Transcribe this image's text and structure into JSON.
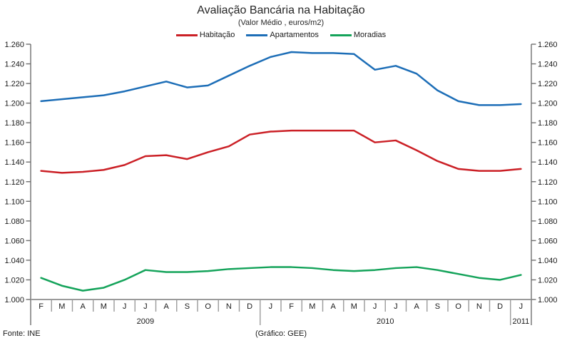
{
  "title": "Avaliação Bancária na Habitação",
  "subtitle": "(Valor Médio , euros/m2)",
  "footer": {
    "source": "Fonte: INE",
    "credit": "(Gráfico: GEE)"
  },
  "chart_data": {
    "type": "line",
    "title": "Avaliação Bancária na Habitação",
    "subtitle": "(Valor Médio , euros/m2)",
    "legend_position": "top",
    "grid": false,
    "ylim": [
      1.0,
      1.26
    ],
    "y_tick_step": 0.02,
    "y_tick_labels": [
      "1.000",
      "1.020",
      "1.040",
      "1.060",
      "1.080",
      "1.100",
      "1.120",
      "1.140",
      "1.160",
      "1.180",
      "1.200",
      "1.220",
      "1.240",
      "1.260"
    ],
    "x_months": [
      "F",
      "M",
      "A",
      "M",
      "J",
      "J",
      "A",
      "S",
      "O",
      "N",
      "D",
      "J",
      "F",
      "M",
      "A",
      "M",
      "J",
      "J",
      "A",
      "S",
      "O",
      "N",
      "D",
      "J"
    ],
    "year_groups": [
      {
        "label": "2009",
        "start": 0,
        "end": 10
      },
      {
        "label": "2010",
        "start": 11,
        "end": 22
      },
      {
        "label": "2011",
        "start": 23,
        "end": 23
      }
    ],
    "series": [
      {
        "name": "Habitação",
        "color": "#cb2026",
        "values": [
          1.131,
          1.129,
          1.13,
          1.132,
          1.137,
          1.146,
          1.147,
          1.143,
          1.15,
          1.156,
          1.168,
          1.171,
          1.172,
          1.172,
          1.172,
          1.172,
          1.16,
          1.162,
          1.152,
          1.141,
          1.133,
          1.131,
          1.131,
          1.133
        ]
      },
      {
        "name": "Apartamentos",
        "color": "#1d6eb7",
        "values": [
          1.202,
          1.204,
          1.206,
          1.208,
          1.212,
          1.217,
          1.222,
          1.216,
          1.218,
          1.228,
          1.238,
          1.247,
          1.252,
          1.251,
          1.251,
          1.25,
          1.234,
          1.238,
          1.23,
          1.213,
          1.202,
          1.198,
          1.198,
          1.199
        ]
      },
      {
        "name": "Moradias",
        "color": "#14a35a",
        "values": [
          1.022,
          1.014,
          1.009,
          1.012,
          1.02,
          1.03,
          1.028,
          1.028,
          1.029,
          1.031,
          1.032,
          1.033,
          1.033,
          1.032,
          1.03,
          1.029,
          1.03,
          1.032,
          1.033,
          1.03,
          1.026,
          1.022,
          1.02,
          1.025
        ]
      }
    ],
    "axis_colors": {
      "value_axis": "#6e6e6e",
      "category_axis": "#9a9a9a"
    }
  }
}
